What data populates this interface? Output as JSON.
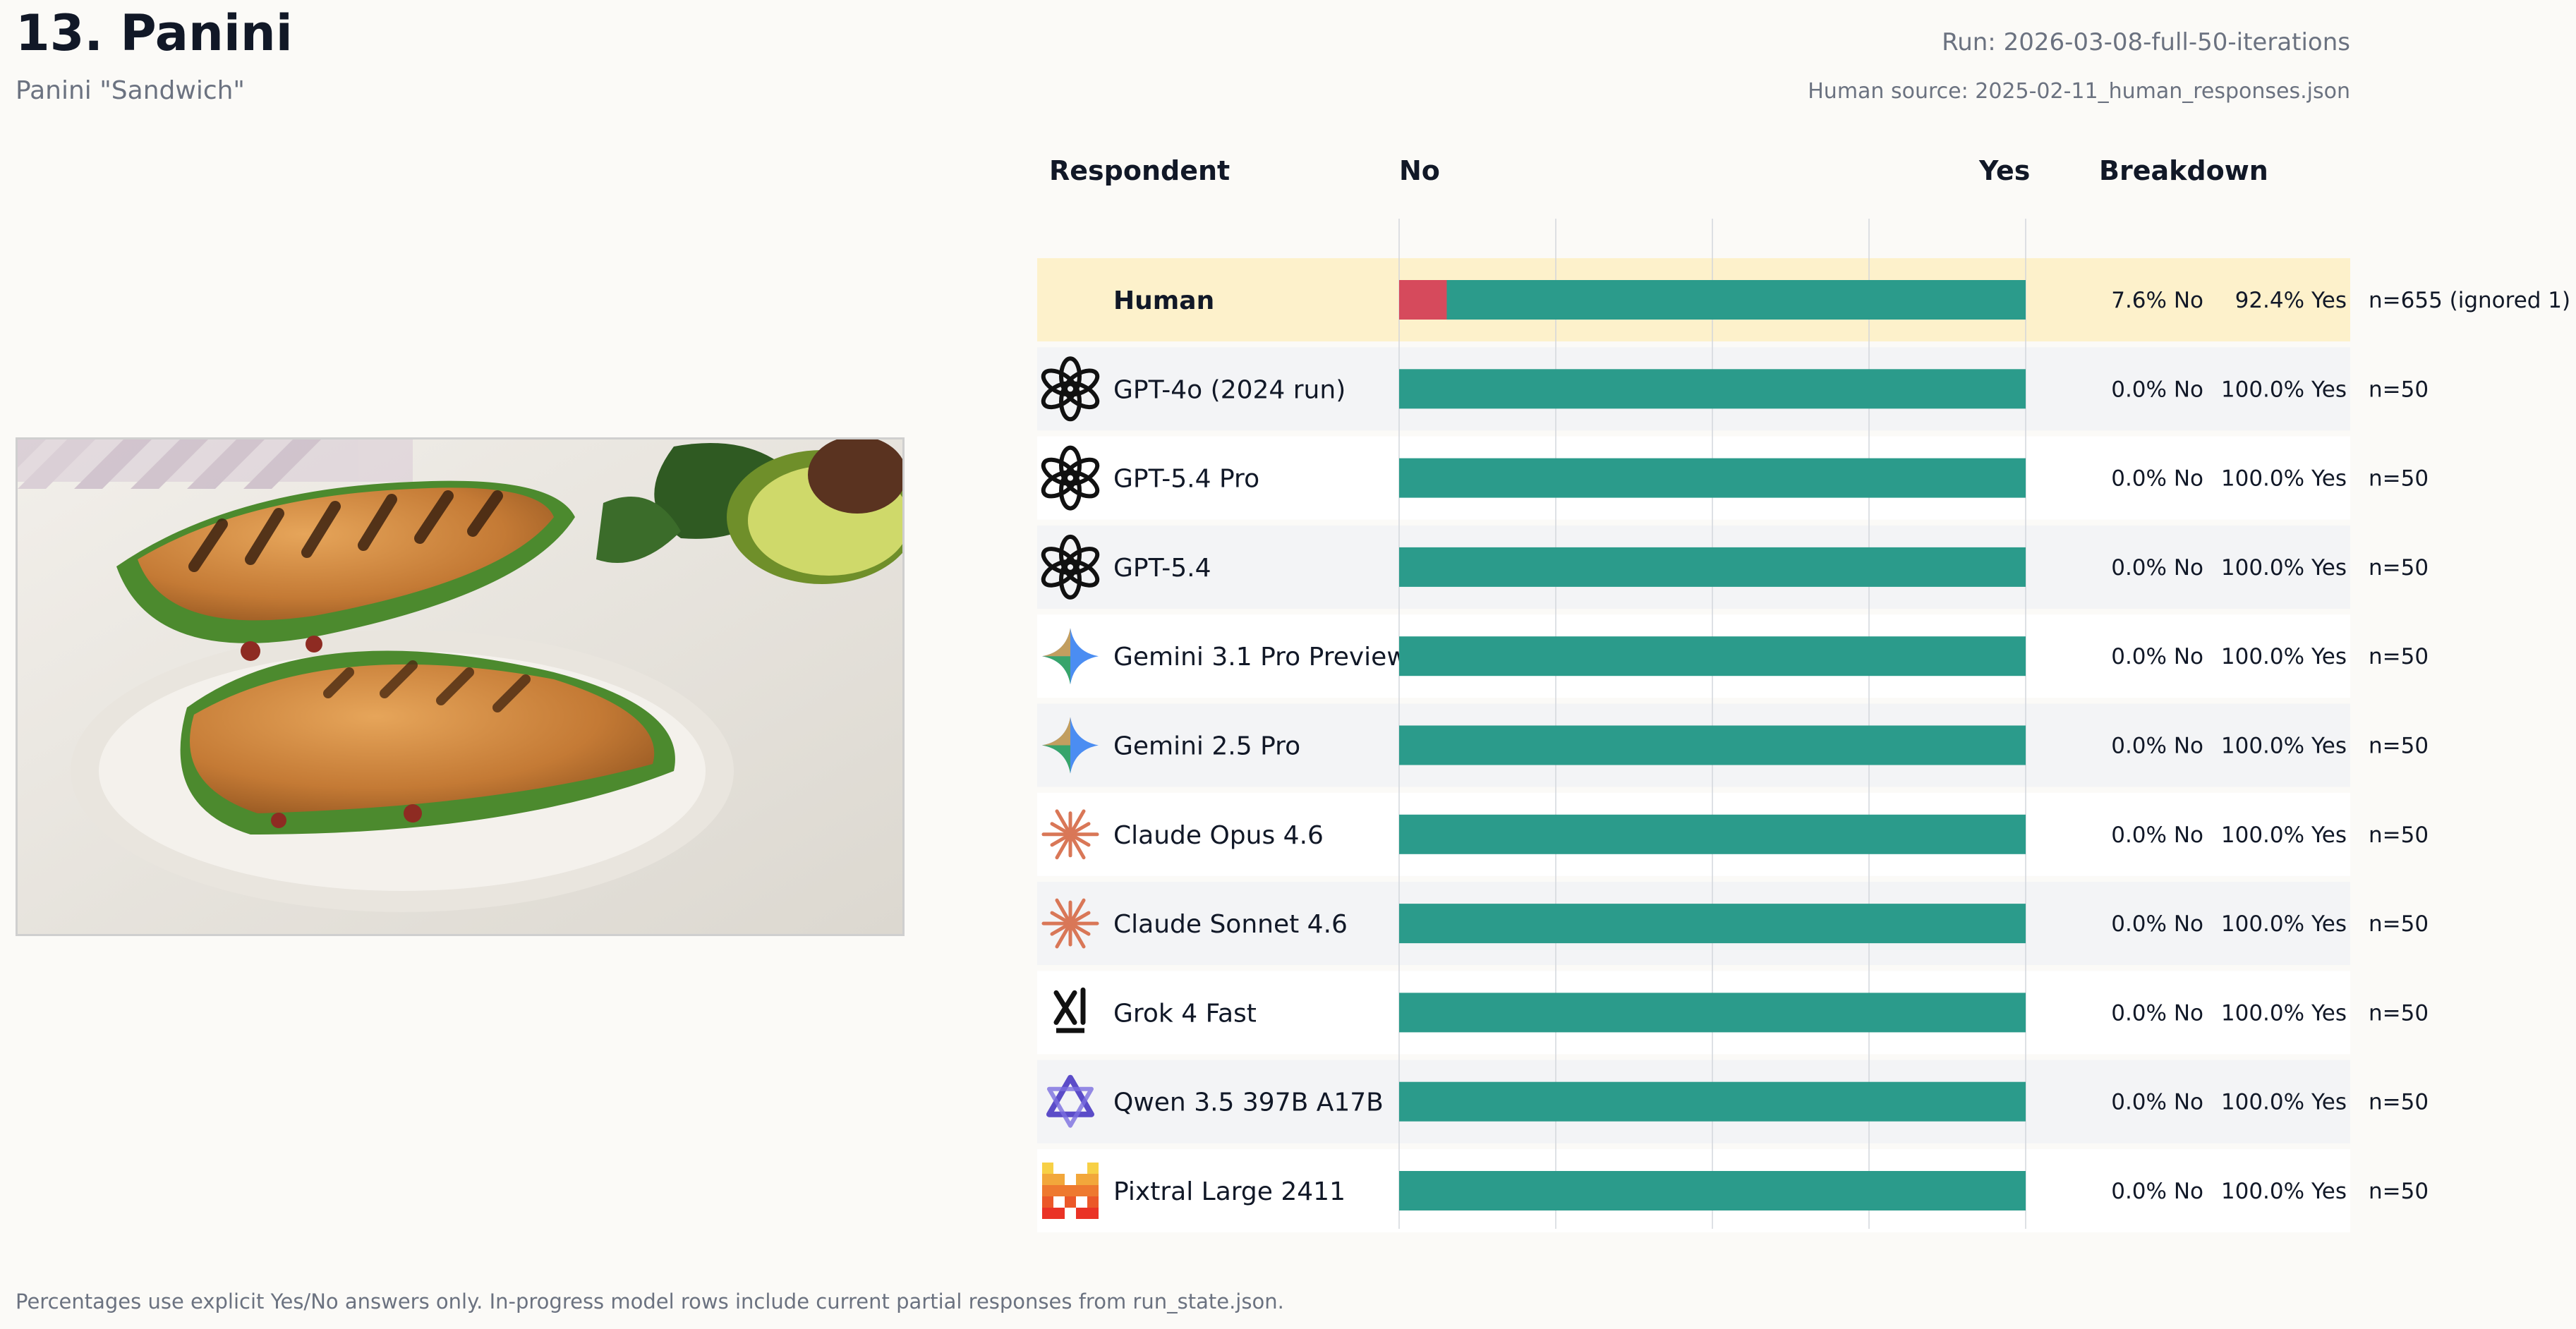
{
  "header": {
    "title": "13. Panini",
    "subtitle": "Panini \"Sandwich\"",
    "run": "Run: 2026-03-08-full-50-iterations",
    "human_source": "Human source: 2025-02-11_human_responses.json"
  },
  "columns": {
    "respondent": "Respondent",
    "no": "No",
    "yes": "Yes",
    "breakdown": "Breakdown"
  },
  "footer": "Percentages use explicit Yes/No answers only. In-progress model rows include current partial responses from run_state.json.",
  "colors": {
    "no": "#d64a5c",
    "yes": "#2b9b8b",
    "human_highlight": "#fdf1cb",
    "row_alt": "#f3f4f6",
    "row": "#ffffff"
  },
  "chart_data": {
    "type": "bar",
    "orientation": "horizontal-stacked-100",
    "categories": [
      "Human",
      "GPT-4o (2024 run)",
      "GPT-5.4 Pro",
      "GPT-5.4",
      "Gemini 3.1 Pro Preview",
      "Gemini 2.5 Pro",
      "Claude Opus 4.6",
      "Claude Sonnet 4.6",
      "Grok 4 Fast",
      "Qwen 3.5 397B A17B",
      "Pixtral Large 2411"
    ],
    "icons": [
      "",
      "openai-icon",
      "openai-icon",
      "openai-icon",
      "gemini-icon",
      "gemini-icon",
      "claude-icon",
      "claude-icon",
      "grok-icon",
      "qwen-icon",
      "mistral-icon"
    ],
    "series": [
      {
        "name": "No",
        "values": [
          7.6,
          0,
          0,
          0,
          0,
          0,
          0,
          0,
          0,
          0,
          0
        ]
      },
      {
        "name": "Yes",
        "values": [
          92.4,
          100,
          100,
          100,
          100,
          100,
          100,
          100,
          100,
          100,
          100
        ]
      }
    ],
    "no_labels": [
      "7.6% No",
      "0.0% No",
      "0.0% No",
      "0.0% No",
      "0.0% No",
      "0.0% No",
      "0.0% No",
      "0.0% No",
      "0.0% No",
      "0.0% No",
      "0.0% No"
    ],
    "yes_labels": [
      "92.4% Yes",
      "100.0% Yes",
      "100.0% Yes",
      "100.0% Yes",
      "100.0% Yes",
      "100.0% Yes",
      "100.0% Yes",
      "100.0% Yes",
      "100.0% Yes",
      "100.0% Yes",
      "100.0% Yes"
    ],
    "n_labels": [
      "n=655 (ignored 1)",
      "n=50",
      "n=50",
      "n=50",
      "n=50",
      "n=50",
      "n=50",
      "n=50",
      "n=50",
      "n=50",
      "n=50"
    ],
    "xlim": [
      0,
      100
    ],
    "grid": true
  }
}
